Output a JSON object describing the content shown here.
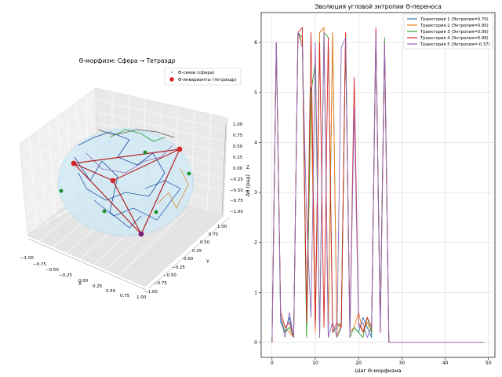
{
  "figure": {
    "left_panel": {
      "title": "Θ-морфизм: Сфера → Тетраэдр",
      "legend": [
        {
          "label": "Θ-связи (сфера)",
          "marker": "dot",
          "color": "#7fb8e6"
        },
        {
          "label": "Θ-инварианты (тетраэдр)",
          "marker": "circle",
          "color": "#d62728"
        }
      ],
      "x_axis": {
        "label": "X",
        "ticks": [
          "−1.00",
          "−0.75",
          "−0.50",
          "−0.25",
          "0.00",
          "0.25",
          "0.50",
          "0.75",
          "1.00"
        ]
      },
      "y_axis": {
        "label": "Y",
        "ticks": [
          "1.00",
          "0.75",
          "0.50",
          "0.25",
          "0.00",
          "−0.25",
          "−0.50",
          "−0.75",
          "−1.00"
        ]
      },
      "z_axis": {
        "label": "Z",
        "ticks": [
          "1.00",
          "0.75",
          "0.50",
          "0.25",
          "0.00",
          "−0.25",
          "−0.50",
          "−0.75",
          "−1.00"
        ]
      }
    }
  },
  "chart_data": [
    {
      "type": "scatter",
      "subtype": "3d",
      "title": "Θ-морфизм: Сфера → Тетраэдр",
      "xlabel": "X",
      "ylabel": "Y",
      "zlabel": "Z",
      "xlim": [
        -1,
        1
      ],
      "ylim": [
        -1,
        1
      ],
      "zlim": [
        -1,
        1
      ],
      "legend_position": "top-right",
      "series": [
        {
          "name": "Θ-связи (сфера)",
          "kind": "scatter",
          "color": "#7fb8e6",
          "description_points": "dense points on unit sphere"
        },
        {
          "name": "Θ-инварианты (тетраэдр)",
          "kind": "scatter",
          "color": "#d62728",
          "points": [
            [
              0.0,
              0.0,
              1.0
            ],
            [
              -0.9,
              -0.3,
              0.2
            ],
            [
              0.3,
              -0.9,
              0.2
            ],
            [
              0.0,
              0.9,
              -0.9
            ]
          ]
        }
      ],
      "grid": true
    },
    {
      "type": "line",
      "title": "Эволюция угловой энтропии Θ-переноса",
      "xlabel": "Шаг Θ-морфизма",
      "ylabel": "Δθ (рад)",
      "xlim": [
        -2.5,
        51.5
      ],
      "ylim": [
        -0.3,
        6.6
      ],
      "xticks": [
        0,
        10,
        20,
        30,
        40,
        50
      ],
      "yticks": [
        0,
        1,
        2,
        3,
        4,
        5,
        6
      ],
      "grid": true,
      "legend_position": "top-right",
      "x": [
        0,
        1,
        2,
        3,
        4,
        5,
        6,
        7,
        8,
        9,
        10,
        11,
        12,
        13,
        14,
        15,
        16,
        17,
        18,
        19,
        20,
        21,
        22,
        23,
        24,
        25,
        26,
        27,
        28,
        29,
        30,
        31,
        32,
        33,
        34,
        35,
        36,
        37,
        38,
        39,
        40,
        41,
        42,
        43,
        44,
        45,
        46,
        47,
        48,
        49
      ],
      "series": [
        {
          "name": "Траектория 1 (Энтропия=0.70)",
          "color": "#1f77b4",
          "values": [
            0,
            6.0,
            0.4,
            0.2,
            0.5,
            0.1,
            6.2,
            6.1,
            0.5,
            5.1,
            0.3,
            6.2,
            6.3,
            0.1,
            6.2,
            0.1,
            0.3,
            6.1,
            0.2,
            0.3,
            0.2,
            0.5,
            0.3,
            0.1,
            6.2,
            0.4,
            6.0,
            0,
            0,
            0,
            0,
            0,
            0,
            0,
            0,
            0,
            0,
            0,
            0,
            0,
            0,
            0,
            0,
            0,
            0,
            0,
            0,
            0,
            0,
            0
          ]
        },
        {
          "name": "Траектория 2 (Энтропия=0.90)",
          "color": "#ff7f0e",
          "values": [
            0,
            6.0,
            0.6,
            0.3,
            0.2,
            0.1,
            6.2,
            6.0,
            0.4,
            5.0,
            0.2,
            6.2,
            6.3,
            0.3,
            6.2,
            0.1,
            0.4,
            6.2,
            0.2,
            0.3,
            0.6,
            0.2,
            0.4,
            0.2,
            6.2,
            0.3,
            5.9,
            0,
            0,
            0,
            0,
            0,
            0,
            0,
            0,
            0,
            0,
            0,
            0,
            0,
            0,
            0,
            0,
            0,
            0,
            0,
            0,
            0,
            0,
            0
          ]
        },
        {
          "name": "Траектория 3 (Энтропия=0.06)",
          "color": "#2ca02c",
          "values": [
            0,
            6.0,
            0.5,
            0.2,
            0.3,
            0.1,
            6.2,
            6.1,
            0.1,
            5.0,
            5.6,
            0.1,
            6.2,
            6.1,
            0.2,
            0.3,
            0.4,
            6.1,
            0.1,
            0.3,
            0.2,
            0.1,
            0.5,
            0.2,
            6.2,
            0.3,
            6.1,
            0,
            0,
            0,
            0,
            0,
            0,
            0,
            0,
            0,
            0,
            0,
            0,
            0,
            0,
            0,
            0,
            0,
            0,
            0,
            0,
            0,
            0,
            0
          ]
        },
        {
          "name": "Траектория 4 (Энтропия=0.96)",
          "color": "#d62728",
          "values": [
            0,
            6.0,
            0.6,
            0.3,
            0.4,
            0.1,
            6.2,
            6.3,
            0.4,
            6.2,
            0.3,
            6.0,
            0.3,
            6.1,
            0.2,
            0.4,
            0.3,
            6.2,
            0.2,
            5.3,
            0.4,
            0.2,
            0.5,
            0.3,
            6.3,
            0.2,
            6.0,
            0,
            0,
            0,
            0,
            0,
            0,
            0,
            0,
            0,
            0,
            0,
            0,
            0,
            0,
            0,
            0,
            0,
            0,
            0,
            0,
            0,
            0,
            0
          ]
        },
        {
          "name": "Траектория 5 (Энтропия=-0.37)",
          "color": "#9467bd",
          "values": [
            0,
            6.0,
            0.5,
            0.1,
            0.6,
            0.1,
            6.2,
            5.9,
            2.5,
            0.5,
            6.0,
            0.1,
            6.2,
            0.1,
            0.4,
            0.1,
            5.9,
            6.1,
            0.1,
            4.7,
            0.3,
            0.4,
            0.1,
            0.3,
            6.2,
            0.2,
            6.0,
            0,
            0,
            0,
            0,
            0,
            0,
            0,
            0,
            0,
            0,
            0,
            0,
            0,
            0,
            0,
            0,
            0,
            0,
            0,
            0,
            0,
            0,
            0
          ]
        }
      ]
    }
  ]
}
